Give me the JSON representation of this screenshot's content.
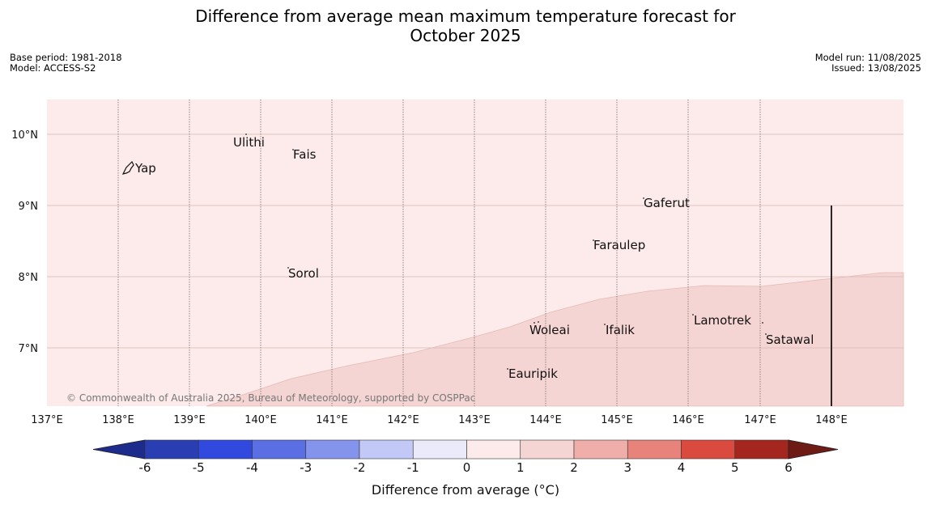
{
  "title": {
    "line1": "Difference from average mean maximum temperature forecast for",
    "line2": "October 2025"
  },
  "meta_left": {
    "base_period": "Base period: 1981-2018",
    "model": "Model: ACCESS-S2"
  },
  "meta_right": {
    "model_run": "Model run: 11/08/2025",
    "issued": "Issued: 13/08/2025"
  },
  "map": {
    "lon_ticks": [
      "137°E",
      "138°E",
      "139°E",
      "140°E",
      "141°E",
      "142°E",
      "143°E",
      "144°E",
      "145°E",
      "146°E",
      "147°E",
      "148°E"
    ],
    "lat_ticks": [
      "10°N",
      "9°N",
      "8°N",
      "7°N"
    ],
    "places": [
      {
        "name": "Yap"
      },
      {
        "name": "Ulithi"
      },
      {
        "name": "Fais"
      },
      {
        "name": "Gaferut"
      },
      {
        "name": "Faraulep"
      },
      {
        "name": "Sorol"
      },
      {
        "name": "Lamotrek"
      },
      {
        "name": "Woleai"
      },
      {
        "name": "Ifalik"
      },
      {
        "name": "Satawal"
      },
      {
        "name": "Eauripik"
      }
    ],
    "copyright": "© Commonwealth of Australia 2025, Bureau of Meteorology, supported by COSPPac",
    "region_colors": {
      "band_0_1": "#fcebea",
      "band_1_2": "#f5d5d3"
    }
  },
  "colorbar": {
    "label": "Difference from average (°C)",
    "tick_labels": [
      "-6",
      "-5",
      "-4",
      "-3",
      "-2",
      "-1",
      "0",
      "1",
      "2",
      "3",
      "4",
      "5",
      "6"
    ],
    "colors": [
      "#1d2c8c",
      "#2a3eb4",
      "#3149de",
      "#5b6fe5",
      "#8493ec",
      "#c2c9f6",
      "#eaeafb",
      "#fcebea",
      "#f5d5d3",
      "#efaea9",
      "#e8837b",
      "#db4a3e",
      "#a5261f",
      "#6e1a15"
    ]
  }
}
